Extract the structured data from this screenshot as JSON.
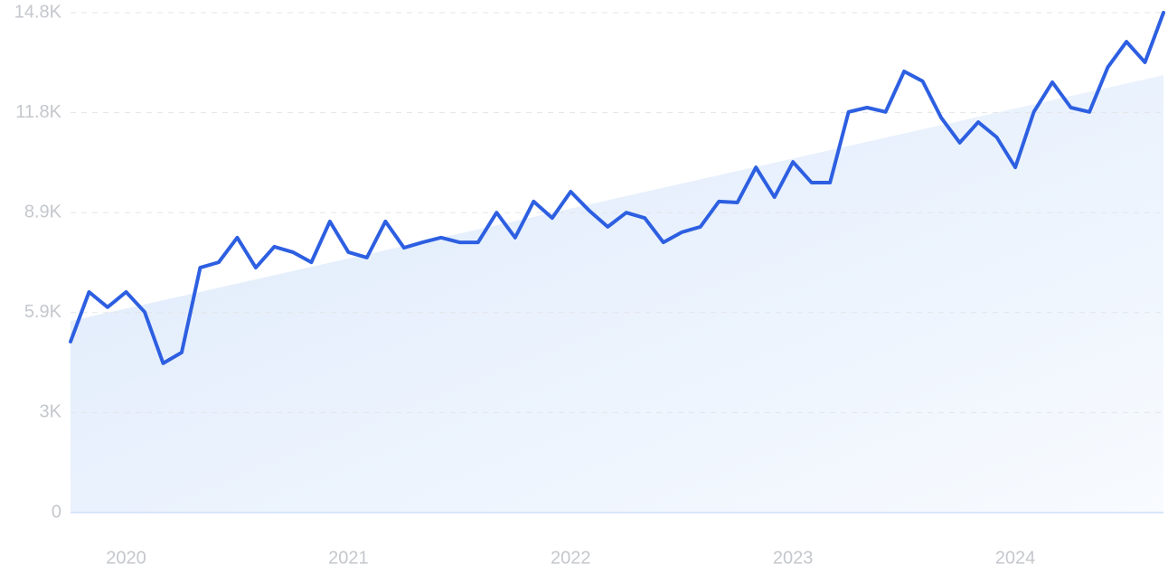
{
  "chart_data": {
    "type": "line",
    "categories": [
      null,
      null,
      null,
      "2020",
      null,
      null,
      null,
      null,
      null,
      null,
      null,
      null,
      null,
      null,
      null,
      "2021",
      null,
      null,
      null,
      null,
      null,
      null,
      null,
      null,
      null,
      null,
      null,
      "2022",
      null,
      null,
      null,
      null,
      null,
      null,
      null,
      null,
      null,
      null,
      null,
      "2023",
      null,
      null,
      null,
      null,
      null,
      null,
      null,
      null,
      null,
      null,
      null,
      "2024",
      null,
      null,
      null,
      null,
      null,
      null,
      null,
      null
    ],
    "series": [
      {
        "color": "#2d5fe1",
        "values": [
          5060,
          6530,
          6080,
          6530,
          5940,
          4420,
          4740,
          7250,
          7410,
          8140,
          7250,
          7870,
          7710,
          7410,
          8620,
          7710,
          7550,
          8620,
          7840,
          8000,
          8140,
          8000,
          8000,
          8880,
          8140,
          9210,
          8720,
          9500,
          8940,
          8460,
          8880,
          8720,
          8000,
          8300,
          8460,
          9210,
          9180,
          10220,
          9340,
          10380,
          9770,
          9770,
          11860,
          11990,
          11860,
          13060,
          12770,
          11690,
          10950,
          11560,
          11110,
          10220,
          11860,
          12740,
          11990,
          11860,
          13190,
          13940,
          13330,
          14800
        ]
      }
    ],
    "trend": {
      "values": [
        5670,
        12950
      ],
      "color": "#dce9fb"
    },
    "ylim": [
      0,
      14800
    ],
    "yticks": [
      0,
      {
        "value": 2960,
        "label": "3K"
      },
      {
        "value": 5920,
        "label": "5.9K"
      },
      {
        "value": 8880,
        "label": "8.9K"
      },
      {
        "value": 11840,
        "label": "11.8K"
      },
      {
        "value": 14800,
        "label": "14.8K"
      }
    ],
    "grid": true
  }
}
